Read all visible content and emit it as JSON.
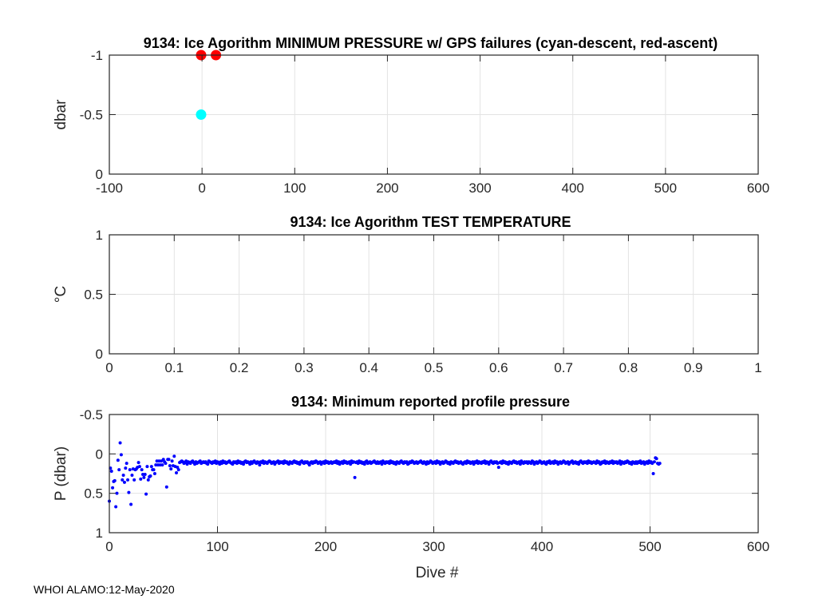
{
  "footer": "WHOI ALAMO:12-May-2020",
  "chart_data": [
    {
      "type": "scatter",
      "title": "9134: Ice Agorithm MINIMUM PRESSURE w/ GPS failures (cyan-descent, red-ascent)",
      "xlabel": "",
      "ylabel": "dbar",
      "xlim": [
        -100,
        600
      ],
      "ylim": [
        -1,
        0
      ],
      "y_reversed": true,
      "xticks": [
        -100,
        0,
        100,
        200,
        300,
        400,
        500,
        600
      ],
      "yticks": [
        -1,
        -0.5,
        0
      ],
      "xtick_labels": [
        "-100",
        "0",
        "100",
        "200",
        "300",
        "400",
        "500",
        "600"
      ],
      "ytick_labels": [
        "-1",
        "-0.5",
        "0"
      ],
      "grid": true,
      "series": [
        {
          "name": "descent",
          "color": "#00ffff",
          "x": [
            -1
          ],
          "y": [
            -0.5
          ]
        },
        {
          "name": "ascent",
          "color": "#ff0000",
          "x": [
            -1,
            15
          ],
          "y": [
            -1,
            -1
          ]
        }
      ]
    },
    {
      "type": "scatter",
      "title": "9134: Ice Agorithm TEST TEMPERATURE",
      "xlabel": "",
      "ylabel": "°C",
      "xlim": [
        0,
        1
      ],
      "ylim": [
        0,
        1
      ],
      "y_reversed": false,
      "xticks": [
        0,
        0.1,
        0.2,
        0.3,
        0.4,
        0.5,
        0.6,
        0.7,
        0.8,
        0.9,
        1
      ],
      "yticks": [
        0,
        0.5,
        1
      ],
      "xtick_labels": [
        "0",
        "0.1",
        "0.2",
        "0.3",
        "0.4",
        "0.5",
        "0.6",
        "0.7",
        "0.8",
        "0.9",
        "1"
      ],
      "ytick_labels": [
        "0",
        "0.5",
        "1"
      ],
      "grid": true,
      "series": []
    },
    {
      "type": "scatter",
      "title": "9134: Minimum reported profile pressure",
      "xlabel": "Dive #",
      "ylabel": "P (dbar)",
      "xlim": [
        0,
        600
      ],
      "ylim": [
        -0.5,
        1
      ],
      "y_reversed": true,
      "xticks": [
        0,
        100,
        200,
        300,
        400,
        500,
        600
      ],
      "yticks": [
        -0.5,
        0,
        0.5,
        1
      ],
      "xtick_labels": [
        "0",
        "100",
        "200",
        "300",
        "400",
        "500",
        "600"
      ],
      "ytick_labels": [
        "-0.5",
        "0",
        "0.5",
        "1"
      ],
      "grid": true,
      "series": [
        {
          "name": "min pressure",
          "color": "#0000ff",
          "x_start": 0,
          "x_step": 1,
          "y": [
            0.6,
            0.18,
            0.22,
            0.43,
            0.35,
            0.34,
            0.67,
            0.5,
            0.08,
            0.2,
            -0.14,
            0.01,
            0.33,
            0.27,
            0.36,
            0.18,
            0.12,
            0.33,
            0.49,
            0.2,
            0.64,
            0.27,
            0.19,
            0.33,
            0.2,
            0.19,
            0.17,
            0.11,
            0.16,
            0.32,
            0.2,
            0.26,
            0.3,
            0.26,
            0.51,
            0.16,
            0.33,
            0.29,
            0.28,
            0.16,
            0.2,
            0.2,
            0.25,
            0.14,
            0.09,
            0.14,
            0.09,
            0.14,
            0.09,
            0.14,
            0.07,
            0.1,
            0.12,
            0.42,
            0.07,
            0.07,
            0.15,
            0.19,
            0.09,
            0.15,
            0.03,
            0.16,
            0.24,
            0.17,
            0.2,
            0.11,
            0.1,
            0.09,
            0.1,
            0.12,
            0.11,
            0.09,
            0.13,
            0.1,
            0.11,
            0.12,
            0.1,
            0.09,
            0.11,
            0.13,
            0.1,
            0.12,
            0.11,
            0.1,
            0.09,
            0.12,
            0.11,
            0.1,
            0.11,
            0.1,
            0.12,
            0.13,
            0.09,
            0.1,
            0.11,
            0.12,
            0.1,
            0.11,
            0.09,
            0.12,
            0.1,
            0.11,
            0.13,
            0.1,
            0.12,
            0.09,
            0.11,
            0.1,
            0.12,
            0.11,
            0.1,
            0.09,
            0.11,
            0.12,
            0.13,
            0.1,
            0.11,
            0.1,
            0.12,
            0.09,
            0.11,
            0.1,
            0.12,
            0.11,
            0.13,
            0.1,
            0.09,
            0.11,
            0.1,
            0.11,
            0.13,
            0.1,
            0.12,
            0.1,
            0.09,
            0.11,
            0.12,
            0.1,
            0.11,
            0.14,
            0.1,
            0.11,
            0.09,
            0.12,
            0.1,
            0.11,
            0.12,
            0.1,
            0.09,
            0.1,
            0.12,
            0.11,
            0.1,
            0.13,
            0.11,
            0.1,
            0.09,
            0.12,
            0.1,
            0.11,
            0.1,
            0.12,
            0.09,
            0.11,
            0.1,
            0.12,
            0.13,
            0.1,
            0.11,
            0.12,
            0.1,
            0.09,
            0.11,
            0.1,
            0.12,
            0.11,
            0.13,
            0.1,
            0.09,
            0.11,
            0.12,
            0.1,
            0.11,
            0.1,
            0.12,
            0.14,
            0.11,
            0.1,
            0.12,
            0.1,
            0.11,
            0.09,
            0.1,
            0.12,
            0.11,
            0.1,
            0.13,
            0.11,
            0.1,
            0.12,
            0.09,
            0.11,
            0.1,
            0.12,
            0.11,
            0.1,
            0.12,
            0.11,
            0.1,
            0.11,
            0.09,
            0.12,
            0.1,
            0.13,
            0.11,
            0.1,
            0.12,
            0.09,
            0.11,
            0.1,
            0.12,
            0.11,
            0.1,
            0.13,
            0.09,
            0.11,
            0.1,
            0.3,
            0.11,
            0.1,
            0.12,
            0.09,
            0.11,
            0.1,
            0.12,
            0.11,
            0.13,
            0.1,
            0.09,
            0.12,
            0.11,
            0.1,
            0.12,
            0.11,
            0.1,
            0.09,
            0.11,
            0.12,
            0.1,
            0.12,
            0.11,
            0.1,
            0.13,
            0.09,
            0.11,
            0.12,
            0.1,
            0.11,
            0.1,
            0.12,
            0.09,
            0.11,
            0.1,
            0.12,
            0.11,
            0.13,
            0.1,
            0.11,
            0.12,
            0.1,
            0.09,
            0.11,
            0.12,
            0.1,
            0.11,
            0.1,
            0.13,
            0.12,
            0.1,
            0.11,
            0.09,
            0.1,
            0.12,
            0.11,
            0.1,
            0.12,
            0.11,
            0.1,
            0.09,
            0.11,
            0.12,
            0.1,
            0.11,
            0.13,
            0.1,
            0.12,
            0.11,
            0.09,
            0.1,
            0.12,
            0.11,
            0.1,
            0.12,
            0.09,
            0.11,
            0.1,
            0.13,
            0.11,
            0.1,
            0.12,
            0.11,
            0.09,
            0.1,
            0.12,
            0.11,
            0.13,
            0.1,
            0.11,
            0.12,
            0.1,
            0.09,
            0.11,
            0.1,
            0.12,
            0.11,
            0.1,
            0.12,
            0.13,
            0.11,
            0.1,
            0.12,
            0.09,
            0.11,
            0.1,
            0.12,
            0.11,
            0.1,
            0.13,
            0.1,
            0.11,
            0.09,
            0.12,
            0.1,
            0.11,
            0.12,
            0.1,
            0.11,
            0.09,
            0.12,
            0.1,
            0.11,
            0.13,
            0.1,
            0.09,
            0.11,
            0.12,
            0.1,
            0.11,
            0.1,
            0.12,
            0.17,
            0.11,
            0.1,
            0.12,
            0.09,
            0.11,
            0.1,
            0.12,
            0.11,
            0.13,
            0.1,
            0.11,
            0.12,
            0.1,
            0.09,
            0.11,
            0.1,
            0.12,
            0.11,
            0.1,
            0.13,
            0.09,
            0.11,
            0.12,
            0.1,
            0.11,
            0.1,
            0.12,
            0.1,
            0.11,
            0.12,
            0.09,
            0.1,
            0.13,
            0.11,
            0.1,
            0.12,
            0.11,
            0.09,
            0.1,
            0.12,
            0.11,
            0.1,
            0.12,
            0.13,
            0.1,
            0.11,
            0.09,
            0.12,
            0.11,
            0.1,
            0.12,
            0.09,
            0.11,
            0.1,
            0.13,
            0.11,
            0.1,
            0.12,
            0.11,
            0.09,
            0.1,
            0.12,
            0.11,
            0.1,
            0.13,
            0.11,
            0.1,
            0.09,
            0.12,
            0.11,
            0.1,
            0.12,
            0.11,
            0.13,
            0.1,
            0.09,
            0.11,
            0.12,
            0.1,
            0.11,
            0.1,
            0.12,
            0.09,
            0.11,
            0.1,
            0.12,
            0.11,
            0.1,
            0.11,
            0.12,
            0.09,
            0.11,
            0.1,
            0.13,
            0.12,
            0.1,
            0.11,
            0.09,
            0.12,
            0.1,
            0.11,
            0.12,
            0.1,
            0.11,
            0.09,
            0.12,
            0.1,
            0.11,
            0.1,
            0.12,
            0.11,
            0.09,
            0.13,
            0.1,
            0.11,
            0.12,
            0.1,
            0.11,
            0.09,
            0.1,
            0.12,
            0.11,
            0.13,
            0.1,
            0.11,
            0.12,
            0.1,
            0.12,
            0.1,
            0.11,
            0.09,
            0.12,
            0.11,
            0.1,
            0.13,
            0.11,
            0.1,
            0.12,
            0.09,
            0.11,
            0.1,
            0.12,
            0.25,
            0.1,
            0.05,
            0.06,
            0.12,
            0.13,
            0.12
          ]
        }
      ]
    }
  ]
}
